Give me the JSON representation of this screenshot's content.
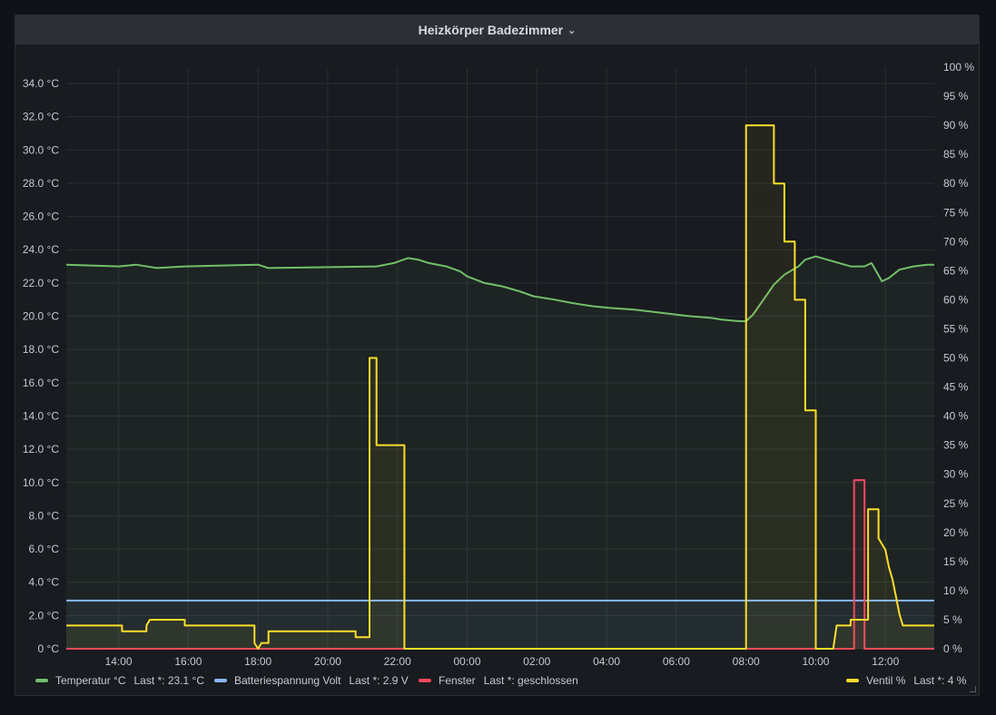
{
  "panel": {
    "title": "Heizkörper Badezimmer",
    "chevron": "⌄"
  },
  "chart_data": {
    "type": "line",
    "title": "Heizkörper Badezimmer",
    "x_labels": [
      "14:00",
      "16:00",
      "18:00",
      "20:00",
      "22:00",
      "00:00",
      "02:00",
      "04:00",
      "06:00",
      "08:00",
      "10:00",
      "12:00"
    ],
    "x_range_hours": [
      12.5,
      36.4
    ],
    "y_left": {
      "unit": "°C",
      "min": 0,
      "max": 34,
      "ticks": [
        "0 °C",
        "2.0 °C",
        "4.0 °C",
        "6.0 °C",
        "8.0 °C",
        "10.0 °C",
        "12.0 °C",
        "14.0 °C",
        "16.0 °C",
        "18.0 °C",
        "20.0 °C",
        "22.0 °C",
        "24.0 °C",
        "26.0 °C",
        "28.0 °C",
        "30.0 °C",
        "32.0 °C",
        "34.0 °C"
      ]
    },
    "y_right": {
      "unit": "%",
      "min": 0,
      "max": 100,
      "ticks": [
        "0 %",
        "5 %",
        "10 %",
        "15 %",
        "20 %",
        "25 %",
        "30 %",
        "35 %",
        "40 %",
        "45 %",
        "50 %",
        "55 %",
        "60 %",
        "65 %",
        "70 %",
        "75 %",
        "80 %",
        "85 %",
        "90 %",
        "95 %",
        "100 %"
      ]
    },
    "grid": true,
    "legend_position": "bottom",
    "series": [
      {
        "name": "Temperatur °C",
        "unit": "°C",
        "axis": "left",
        "color": "#73bf69",
        "last": "Last *: 23.1 °C",
        "points": [
          [
            12.5,
            23.1
          ],
          [
            14.0,
            23.0
          ],
          [
            14.5,
            23.1
          ],
          [
            15.1,
            22.9
          ],
          [
            15.9,
            23.0
          ],
          [
            18.0,
            23.1
          ],
          [
            18.3,
            22.9
          ],
          [
            21.4,
            23.0
          ],
          [
            21.9,
            23.2
          ],
          [
            22.3,
            23.5
          ],
          [
            22.6,
            23.4
          ],
          [
            22.9,
            23.2
          ],
          [
            23.4,
            23.0
          ],
          [
            23.8,
            22.7
          ],
          [
            24.0,
            22.4
          ],
          [
            24.5,
            22.0
          ],
          [
            25.0,
            21.8
          ],
          [
            25.5,
            21.5
          ],
          [
            25.9,
            21.2
          ],
          [
            26.5,
            21.0
          ],
          [
            27.0,
            20.8
          ],
          [
            27.6,
            20.6
          ],
          [
            28.1,
            20.5
          ],
          [
            28.8,
            20.4
          ],
          [
            29.6,
            20.2
          ],
          [
            30.0,
            20.1
          ],
          [
            30.4,
            20.0
          ],
          [
            31.0,
            19.9
          ],
          [
            31.3,
            19.8
          ],
          [
            31.8,
            19.7
          ],
          [
            32.0,
            19.7
          ],
          [
            32.2,
            20.1
          ],
          [
            32.5,
            21.0
          ],
          [
            32.8,
            21.9
          ],
          [
            33.1,
            22.5
          ],
          [
            33.5,
            23.0
          ],
          [
            33.7,
            23.4
          ],
          [
            34.0,
            23.6
          ],
          [
            34.5,
            23.3
          ],
          [
            35.0,
            23.0
          ],
          [
            35.4,
            23.0
          ],
          [
            35.6,
            23.2
          ],
          [
            35.9,
            22.1
          ],
          [
            36.1,
            22.3
          ],
          [
            36.4,
            22.8
          ],
          [
            36.8,
            23.0
          ],
          [
            37.2,
            23.1
          ],
          [
            37.4,
            23.1
          ]
        ]
      },
      {
        "name": "Batteriespannung Volt",
        "unit": "V",
        "axis": "left",
        "color": "#8ab8ff",
        "last": "Last *: 2.9 V",
        "points": [
          [
            12.5,
            2.9
          ],
          [
            37.4,
            2.9
          ]
        ]
      },
      {
        "name": "Fenster",
        "axis": "right",
        "color": "#f2495c",
        "last": "Last *: geschlossen",
        "points": [
          [
            12.5,
            0
          ],
          [
            35.1,
            0
          ],
          [
            35.1,
            29
          ],
          [
            35.4,
            29
          ],
          [
            35.4,
            0
          ],
          [
            37.4,
            0
          ]
        ]
      },
      {
        "name": "Ventil %",
        "unit": "%",
        "axis": "right",
        "color": "#fade2a",
        "last": "Last *: 4 %",
        "points": [
          [
            12.5,
            4
          ],
          [
            14.1,
            4
          ],
          [
            14.1,
            3
          ],
          [
            14.8,
            3
          ],
          [
            14.8,
            4
          ],
          [
            14.9,
            5
          ],
          [
            15.9,
            5
          ],
          [
            15.9,
            4
          ],
          [
            17.9,
            4
          ],
          [
            17.9,
            1
          ],
          [
            18.0,
            0
          ],
          [
            18.1,
            1
          ],
          [
            18.3,
            1
          ],
          [
            18.3,
            3
          ],
          [
            20.8,
            3
          ],
          [
            20.8,
            2
          ],
          [
            21.2,
            2
          ],
          [
            21.2,
            50
          ],
          [
            21.4,
            50
          ],
          [
            21.4,
            35
          ],
          [
            22.2,
            35
          ],
          [
            22.2,
            0
          ],
          [
            32.0,
            0
          ],
          [
            32.0,
            90
          ],
          [
            32.8,
            90
          ],
          [
            32.8,
            80
          ],
          [
            33.1,
            80
          ],
          [
            33.1,
            70
          ],
          [
            33.4,
            70
          ],
          [
            33.4,
            60
          ],
          [
            33.7,
            60
          ],
          [
            33.7,
            41
          ],
          [
            34.0,
            41
          ],
          [
            34.0,
            0
          ],
          [
            34.5,
            0
          ],
          [
            34.6,
            4
          ],
          [
            35.0,
            4
          ],
          [
            35.0,
            5
          ],
          [
            35.5,
            5
          ],
          [
            35.5,
            24
          ],
          [
            35.8,
            24
          ],
          [
            35.8,
            19
          ],
          [
            35.9,
            18
          ],
          [
            36.0,
            17
          ],
          [
            36.1,
            14
          ],
          [
            36.2,
            12
          ],
          [
            36.3,
            9
          ],
          [
            36.4,
            6
          ],
          [
            36.5,
            4
          ],
          [
            37.4,
            4
          ]
        ]
      }
    ]
  },
  "legend": {
    "items": [
      {
        "name": "Temperatur °C",
        "last": "Last *: 23.1 °C",
        "color": "#73bf69"
      },
      {
        "name": "Batteriespannung Volt",
        "last": "Last *: 2.9 V",
        "color": "#8ab8ff"
      },
      {
        "name": "Fenster",
        "last": "Last *: geschlossen",
        "color": "#f2495c"
      },
      {
        "name": "Ventil %",
        "last": "Last *: 4 %",
        "color": "#fade2a"
      }
    ]
  },
  "icons": {
    "chevron": "chevron-down-icon",
    "resize": "resize-handle-icon"
  }
}
